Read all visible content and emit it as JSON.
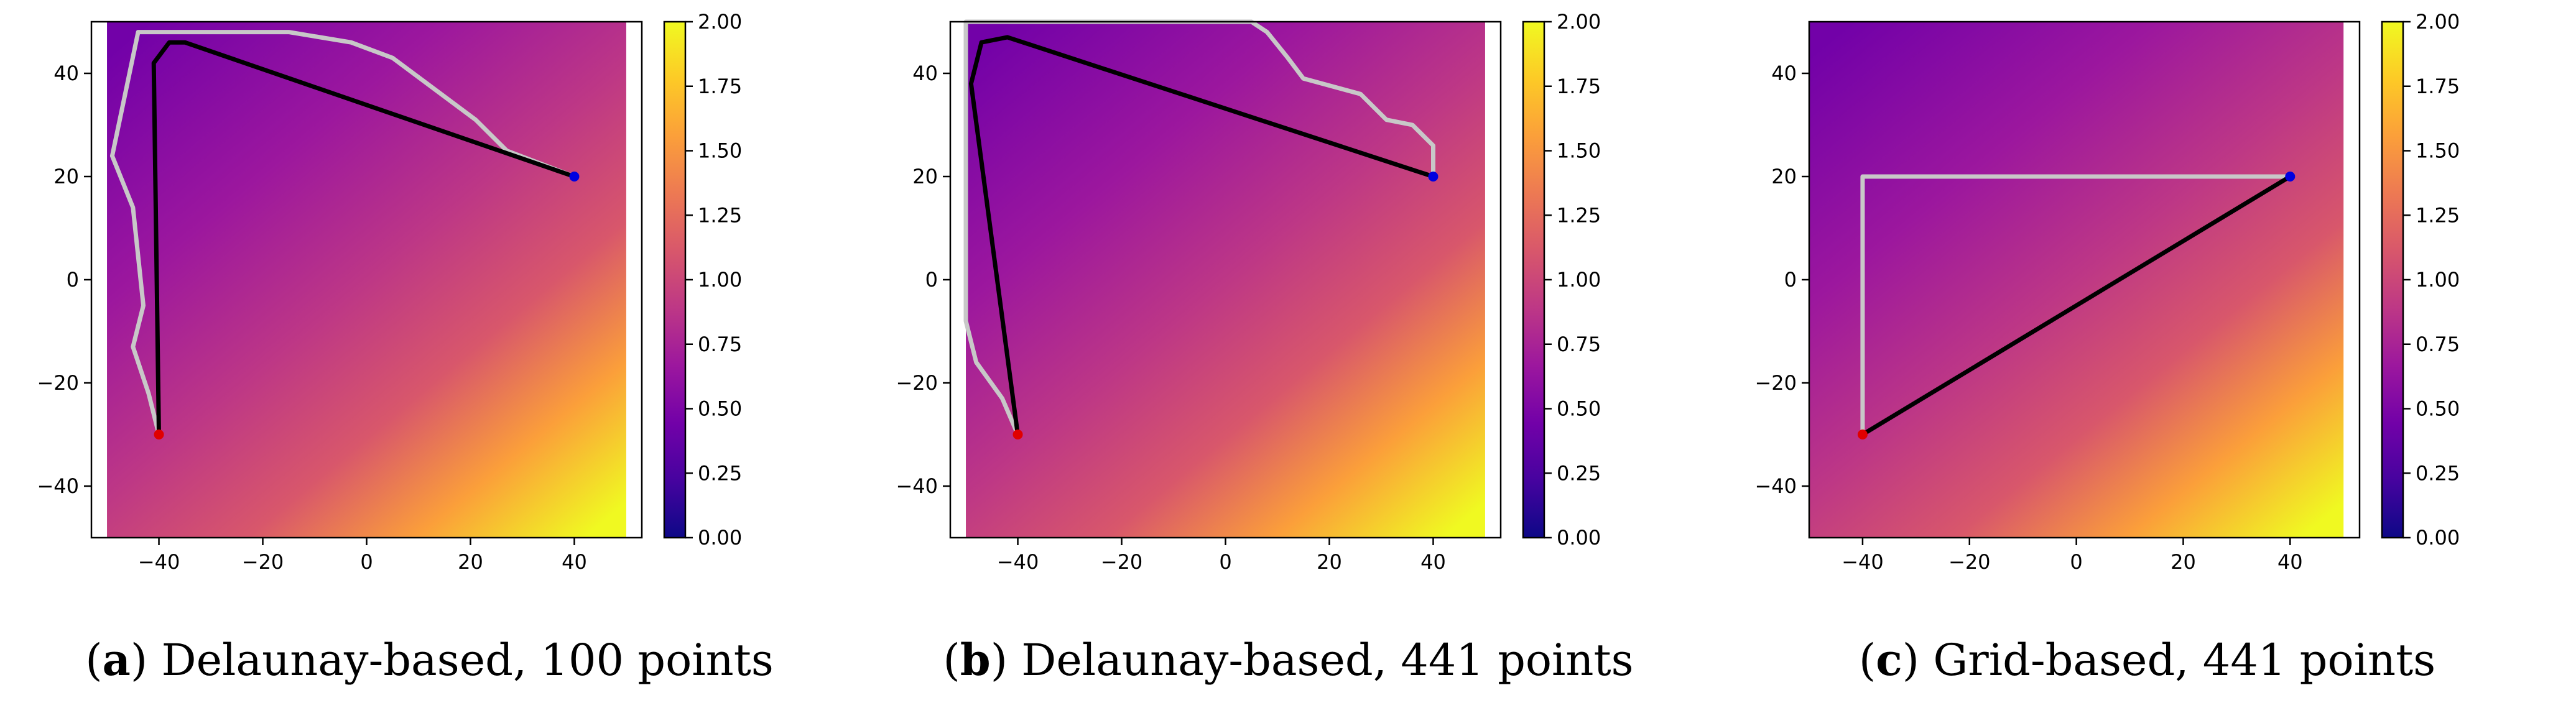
{
  "colormap": {
    "name": "plasma",
    "stops": [
      "#0d0887",
      "#46039f",
      "#7201a8",
      "#9c179e",
      "#bd3786",
      "#d8576b",
      "#ed7953",
      "#fb9f3a",
      "#fdca26",
      "#f0f921"
    ]
  },
  "path_colors": {
    "optimal": "#000000",
    "reference": "#c8c8c8",
    "start": "#e00000",
    "goal": "#0000e0"
  },
  "chart_data": [
    {
      "type": "heatmap",
      "caption_letter": "a",
      "caption_text": " Delaunay-based, 100 points",
      "caption_open": "(",
      "caption_close": ")",
      "xlim": [
        -53,
        53
      ],
      "ylim": [
        -50,
        50
      ],
      "x_ticks": [
        -40,
        -20,
        0,
        20,
        40
      ],
      "y_ticks": [
        -40,
        -20,
        0,
        20,
        40
      ],
      "x_tick_labels": [
        "−40",
        "−20",
        "0",
        "20",
        "40"
      ],
      "y_tick_labels": [
        "−40",
        "−20",
        "0",
        "20",
        "40"
      ],
      "field_extent": [
        -50,
        50
      ],
      "colorbar_range": [
        0,
        2
      ],
      "colorbar_ticks": [
        0,
        0.25,
        0.5,
        0.75,
        1,
        1.25,
        1.5,
        1.75,
        2
      ],
      "colorbar_tick_labels": [
        "0.00",
        "0.25",
        "0.50",
        "0.75",
        "1.00",
        "1.25",
        "1.50",
        "1.75",
        "2.00"
      ],
      "start": [
        -40,
        -30
      ],
      "goal": [
        40,
        20
      ],
      "optimal_path": [
        [
          -40,
          -30
        ],
        [
          -41,
          42
        ],
        [
          -38,
          46
        ],
        [
          -35,
          46
        ],
        [
          40,
          20
        ]
      ],
      "reference_path": [
        [
          -40,
          -30
        ],
        [
          -42,
          -22
        ],
        [
          -45,
          -13
        ],
        [
          -43,
          -5
        ],
        [
          -45,
          14
        ],
        [
          -49,
          24
        ],
        [
          -44,
          48
        ],
        [
          -15,
          48
        ],
        [
          -3,
          46
        ],
        [
          5,
          43
        ],
        [
          21,
          31
        ],
        [
          27,
          25
        ],
        [
          40,
          20
        ]
      ]
    },
    {
      "type": "heatmap",
      "caption_letter": "b",
      "caption_text": " Delaunay-based, 441 points",
      "caption_open": "(",
      "caption_close": ")",
      "xlim": [
        -53,
        53
      ],
      "ylim": [
        -50,
        50
      ],
      "x_ticks": [
        -40,
        -20,
        0,
        20,
        40
      ],
      "y_ticks": [
        -40,
        -20,
        0,
        20,
        40
      ],
      "x_tick_labels": [
        "−40",
        "−20",
        "0",
        "20",
        "40"
      ],
      "y_tick_labels": [
        "−40",
        "−20",
        "0",
        "20",
        "40"
      ],
      "field_extent": [
        -50,
        50
      ],
      "colorbar_range": [
        0,
        2
      ],
      "colorbar_ticks": [
        0,
        0.25,
        0.5,
        0.75,
        1,
        1.25,
        1.5,
        1.75,
        2
      ],
      "colorbar_tick_labels": [
        "0.00",
        "0.25",
        "0.50",
        "0.75",
        "1.00",
        "1.25",
        "1.50",
        "1.75",
        "2.00"
      ],
      "start": [
        -40,
        -30
      ],
      "goal": [
        40,
        20
      ],
      "optimal_path": [
        [
          -40,
          -30
        ],
        [
          -49,
          38
        ],
        [
          -47,
          46
        ],
        [
          -42,
          47
        ],
        [
          40,
          20
        ]
      ],
      "reference_path": [
        [
          -40,
          -30
        ],
        [
          -43,
          -23
        ],
        [
          -48,
          -16
        ],
        [
          -50,
          -8
        ],
        [
          -50,
          50
        ],
        [
          5,
          50
        ],
        [
          8,
          48
        ],
        [
          12,
          43
        ],
        [
          15,
          39
        ],
        [
          26,
          36
        ],
        [
          31,
          31
        ],
        [
          36,
          30
        ],
        [
          40,
          26
        ],
        [
          40,
          20
        ]
      ]
    },
    {
      "type": "heatmap",
      "caption_letter": "c",
      "caption_text": " Grid-based, 441 points",
      "caption_open": "(",
      "caption_close": ")",
      "xlim": [
        -50,
        53
      ],
      "ylim": [
        -50,
        50
      ],
      "x_ticks": [
        -40,
        -20,
        0,
        20,
        40
      ],
      "y_ticks": [
        -40,
        -20,
        0,
        20,
        40
      ],
      "x_tick_labels": [
        "−40",
        "−20",
        "0",
        "20",
        "40"
      ],
      "y_tick_labels": [
        "−40",
        "−20",
        "0",
        "20",
        "40"
      ],
      "field_extent": [
        -50,
        50
      ],
      "colorbar_range": [
        0,
        2
      ],
      "colorbar_ticks": [
        0,
        0.25,
        0.5,
        0.75,
        1,
        1.25,
        1.5,
        1.75,
        2
      ],
      "colorbar_tick_labels": [
        "0.00",
        "0.25",
        "0.50",
        "0.75",
        "1.00",
        "1.25",
        "1.50",
        "1.75",
        "2.00"
      ],
      "start": [
        -40,
        -30
      ],
      "goal": [
        40,
        20
      ],
      "optimal_path": [
        [
          -40,
          -30
        ],
        [
          40,
          20
        ]
      ],
      "reference_path": [
        [
          -40,
          -30
        ],
        [
          -40,
          20
        ],
        [
          40,
          20
        ]
      ]
    }
  ]
}
